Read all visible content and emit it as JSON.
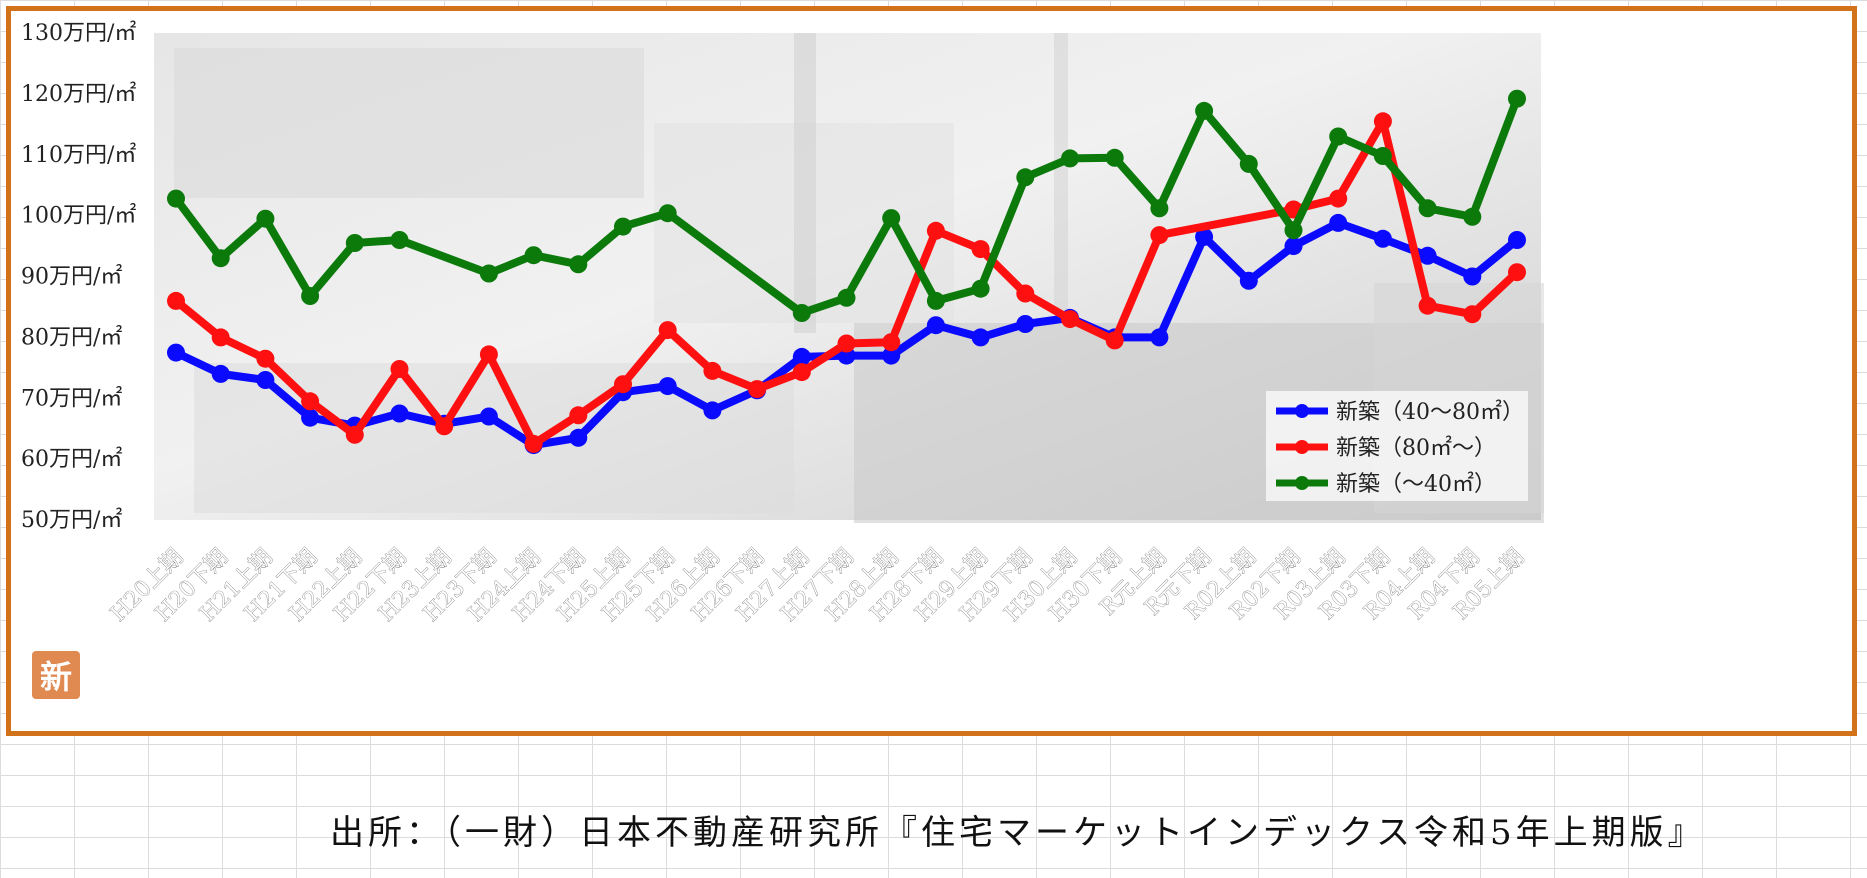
{
  "badge": {
    "text": "新"
  },
  "source_note": "出所：（一財）日本不動産研究所『住宅マーケットインデックス令和5年上期版』",
  "chart_data": {
    "type": "line",
    "title": "",
    "xlabel": "",
    "ylabel": "",
    "ylim": [
      50,
      130
    ],
    "yticks": [
      50,
      60,
      70,
      80,
      90,
      100,
      110,
      120,
      130
    ],
    "ytick_labels": [
      "50万円/㎡",
      "60万円/㎡",
      "70万円/㎡",
      "80万円/㎡",
      "90万円/㎡",
      "100万円/㎡",
      "110万円/㎡",
      "120万円/㎡",
      "130万円/㎡"
    ],
    "grid": false,
    "legend_position": "bottom-right",
    "categories": [
      "H20上期",
      "H20下期",
      "H21上期",
      "H21下期",
      "H22上期",
      "H22下期",
      "H23上期",
      "H23下期",
      "H24上期",
      "H24下期",
      "H25上期",
      "H25下期",
      "H26上期",
      "H26下期",
      "H27上期",
      "H27下期",
      "H28上期",
      "H28下期",
      "H29上期",
      "H29下期",
      "H30上期",
      "H30下期",
      "R元上期",
      "R元下期",
      "R02上期",
      "R02下期",
      "R03上期",
      "R03下期",
      "R04上期",
      "R04下期",
      "R05上期"
    ],
    "series": [
      {
        "name": "新築（40～80㎡）",
        "color": "#0a0aff",
        "values": [
          77.5,
          74,
          73,
          66.8,
          65.5,
          67.5,
          65.8,
          67,
          62.3,
          63.5,
          71,
          72,
          68,
          71.3,
          76.8,
          77,
          77,
          82,
          80,
          82.2,
          83.2,
          80,
          80,
          96.5,
          89.3,
          95,
          98.8,
          96.2,
          93.4,
          90,
          96
        ]
      },
      {
        "name": "新築（80㎡～）",
        "color": "#ff1010",
        "values": [
          86,
          80,
          76.5,
          69.5,
          64,
          74.8,
          65.4,
          77.2,
          62.5,
          67.2,
          72.3,
          81.2,
          74.5,
          71.5,
          74.3,
          79,
          79.2,
          97.5,
          94.5,
          87.2,
          83,
          79.5,
          96.8,
          null,
          null,
          101,
          102.8,
          115.5,
          85.2,
          83.8,
          90.7
        ]
      },
      {
        "name": "新築（～40㎡）",
        "color": "#0b7a0b",
        "values": [
          102.8,
          93,
          99.5,
          86.8,
          95.5,
          96,
          null,
          90.5,
          93.5,
          92,
          98.2,
          100.4,
          null,
          null,
          84,
          86.5,
          99.6,
          86,
          88,
          106.3,
          109.4,
          109.5,
          101.2,
          117.2,
          108.5,
          97.6,
          113,
          109.8,
          101.2,
          99.8,
          119.2
        ]
      }
    ]
  }
}
